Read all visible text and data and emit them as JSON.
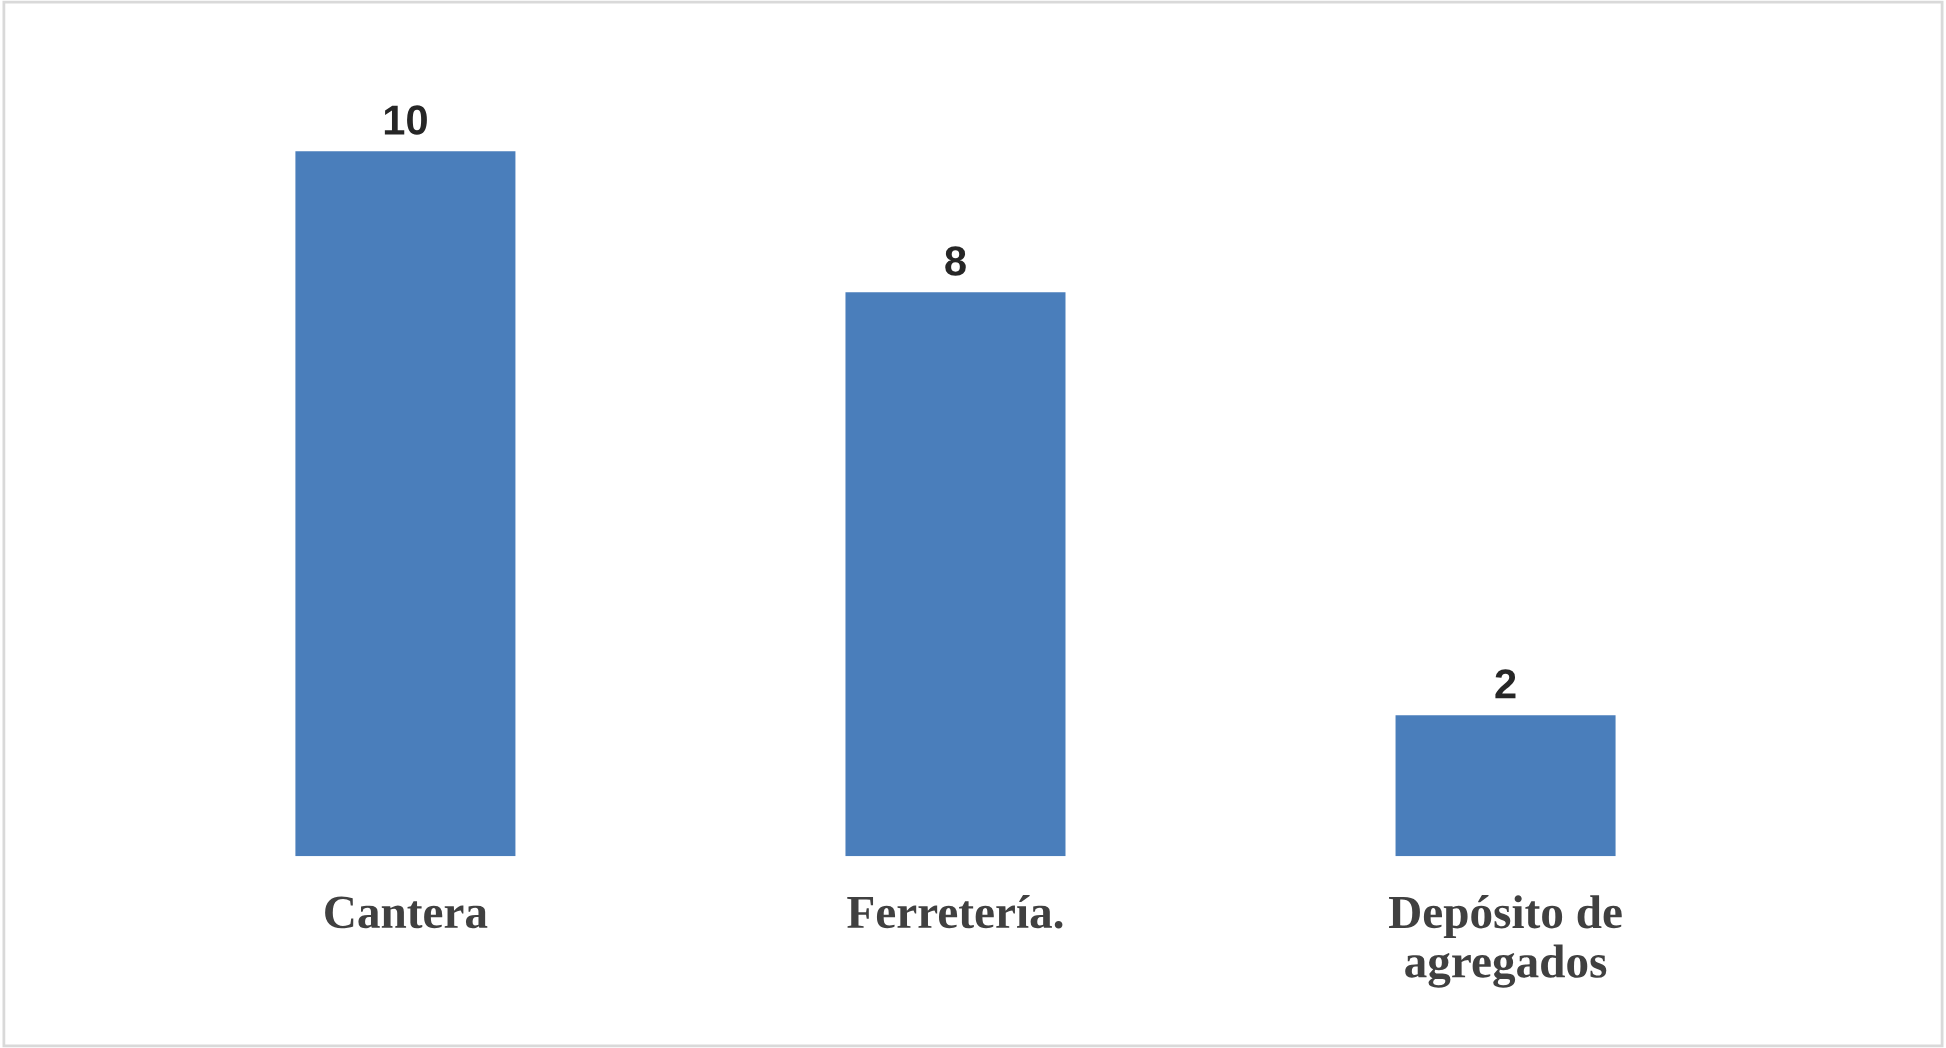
{
  "chart_data": {
    "type": "bar",
    "categories": [
      "Cantera",
      "Ferretería.",
      "Depósito de\nagregados"
    ],
    "values": [
      10,
      8,
      2
    ],
    "color": "#4a7ebb",
    "data_labels": true,
    "grid": false,
    "legend": false
  }
}
